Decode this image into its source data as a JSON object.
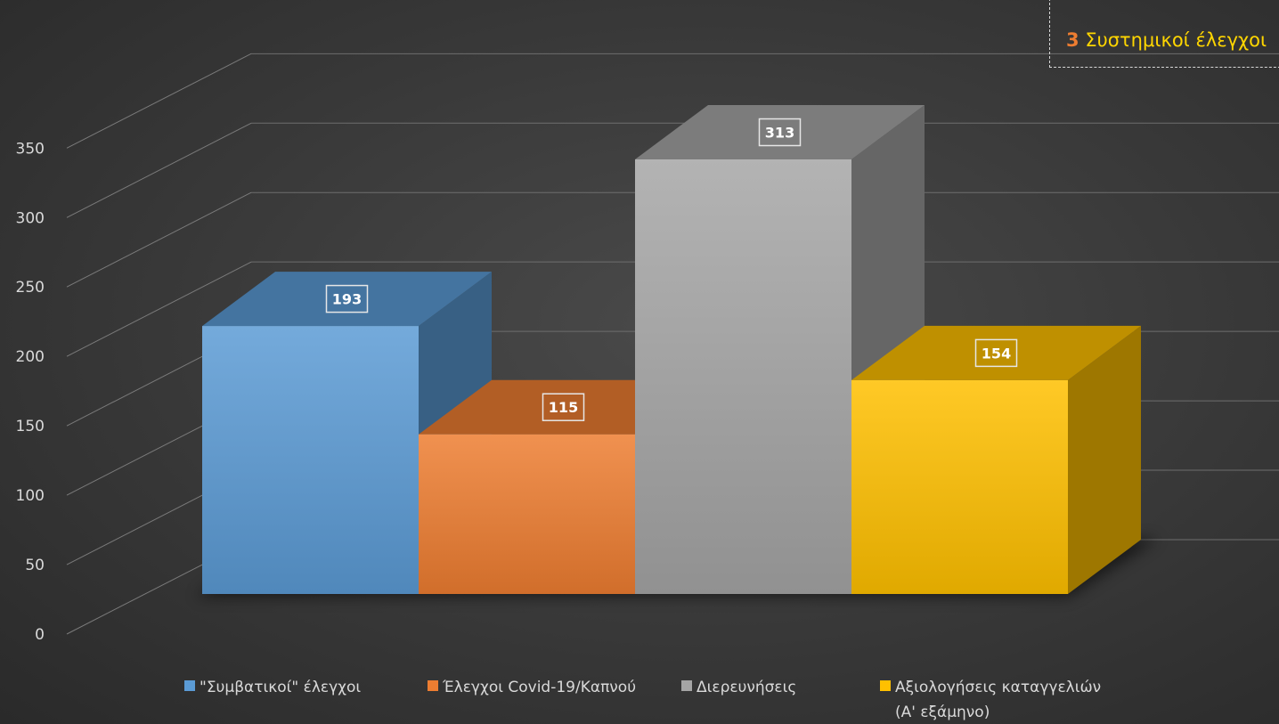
{
  "chart_data": {
    "type": "bar",
    "categories": [
      ""
    ],
    "series": [
      {
        "name": "\"Συμβατικοί\" έλεγχοι",
        "values": [
          193
        ],
        "color": "#5b9bd5"
      },
      {
        "name": "Έλεγχοι Covid-19/Καπνού",
        "values": [
          115
        ],
        "color": "#ed7d31"
      },
      {
        "name": "Διερευνήσεις",
        "values": [
          313
        ],
        "color": "#a5a5a5"
      },
      {
        "name": "Αξιολογήσεις καταγγελιών (Α' εξάμηνο)",
        "values": [
          154
        ],
        "color": "#ffc000"
      }
    ],
    "data_labels": [
      "193",
      "115",
      "313",
      "154"
    ],
    "yticks": [
      "0",
      "50",
      "100",
      "150",
      "200",
      "250",
      "300",
      "350"
    ],
    "ylim": [
      0,
      350
    ],
    "grid": true,
    "legend_position": "bottom",
    "legend": [
      "\"Συμβατικοί\" έλεγχοι",
      "Έλεγχοι Covid-19/Καπνού",
      "Διερευνήσεις",
      "Αξιολογήσεις καταγγελιών"
    ],
    "legend_wrap": "(Α' εξάμηνο)"
  },
  "annotation": {
    "number": "3",
    "text": "Συστημικοί έλεγχοι"
  }
}
